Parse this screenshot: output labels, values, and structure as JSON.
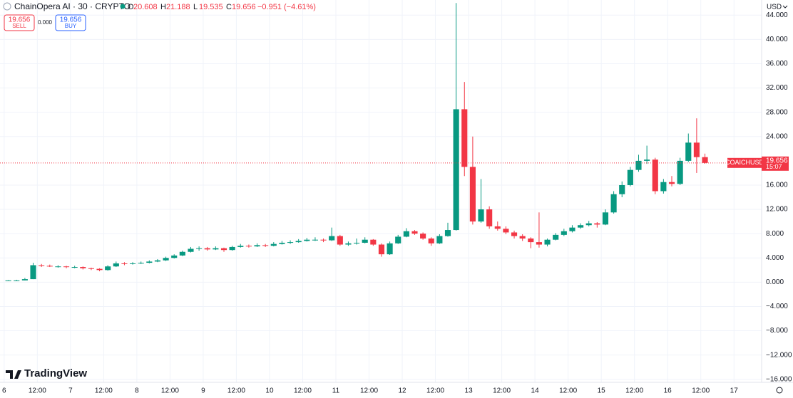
{
  "chart_data": {
    "type": "candlestick",
    "title": "ChainOpera AI · 30 · CRYPTO",
    "header": {
      "o": "O",
      "o_val": "20.608",
      "h": "H",
      "h_val": "21.188",
      "l": "L",
      "l_val": "19.535",
      "c": "C",
      "c_val": "19.656",
      "change": "−0.951 (−4.61%)"
    },
    "trade": {
      "sell_price": "19.656",
      "sell": "SELL",
      "spread": "0.000",
      "buy_price": "19.656",
      "buy": "BUY"
    },
    "currency": "USD",
    "symbol_label": "COAICHUSD",
    "last_price_label": "19.656",
    "countdown": "15:07",
    "brand": "TradingView",
    "up_color": "#089981",
    "down_color": "#f23645",
    "grid": true,
    "xlim": [
      -1.5,
      274
    ],
    "ylim": [
      -16.5,
      46.5
    ],
    "xticks": [
      {
        "value": 0,
        "label": "6"
      },
      {
        "value": 12,
        "label": "12:00"
      },
      {
        "value": 24,
        "label": "7"
      },
      {
        "value": 36,
        "label": "12:00"
      },
      {
        "value": 48,
        "label": "8"
      },
      {
        "value": 60,
        "label": "12:00"
      },
      {
        "value": 72,
        "label": "9"
      },
      {
        "value": 84,
        "label": "12:00"
      },
      {
        "value": 96,
        "label": "10"
      },
      {
        "value": 108,
        "label": "12:00"
      },
      {
        "value": 120,
        "label": "11"
      },
      {
        "value": 132,
        "label": "12:00"
      },
      {
        "value": 144,
        "label": "12"
      },
      {
        "value": 156,
        "label": "12:00"
      },
      {
        "value": 168,
        "label": "13"
      },
      {
        "value": 180,
        "label": "12:00"
      },
      {
        "value": 192,
        "label": "14"
      },
      {
        "value": 204,
        "label": "12:00"
      },
      {
        "value": 216,
        "label": "15"
      },
      {
        "value": 228,
        "label": "12:00"
      },
      {
        "value": 240,
        "label": "16"
      },
      {
        "value": 252,
        "label": "12:00"
      },
      {
        "value": 264,
        "label": "17"
      }
    ],
    "yticks": [
      {
        "value": 44,
        "label": "44.000"
      },
      {
        "value": 40,
        "label": "40.000"
      },
      {
        "value": 36,
        "label": "36.000"
      },
      {
        "value": 32,
        "label": "32.000"
      },
      {
        "value": 28,
        "label": "28.000"
      },
      {
        "value": 24,
        "label": "24.000"
      },
      {
        "value": 16,
        "label": "16.000"
      },
      {
        "value": 12,
        "label": "12.000"
      },
      {
        "value": 8,
        "label": "8.000"
      },
      {
        "value": 4,
        "label": "4.000"
      },
      {
        "value": 0,
        "label": "0.000"
      },
      {
        "value": -4,
        "label": "−4.000"
      },
      {
        "value": -8,
        "label": "−8.000"
      },
      {
        "value": -12,
        "label": "−12.000"
      },
      {
        "value": -16,
        "label": "−16.000"
      }
    ],
    "x": [
      0,
      3,
      6,
      9,
      12,
      15,
      18,
      21,
      24,
      27,
      30,
      33,
      36,
      39,
      42,
      45,
      48,
      51,
      54,
      57,
      60,
      63,
      66,
      69,
      72,
      75,
      78,
      81,
      84,
      87,
      90,
      93,
      96,
      99,
      102,
      105,
      108,
      111,
      114,
      117,
      120,
      123,
      126,
      129,
      132,
      135,
      138,
      141,
      144,
      147,
      150,
      153,
      156,
      159,
      162,
      165,
      168,
      171,
      174,
      177,
      180,
      183,
      186,
      189,
      192,
      195,
      198,
      201,
      204,
      207,
      210,
      213,
      216,
      219,
      222,
      225,
      228,
      231,
      234,
      237,
      240,
      243,
      246,
      249,
      252
    ],
    "ohlc": [
      [
        0.3,
        0.35,
        0.25,
        0.3
      ],
      [
        0.3,
        0.4,
        0.25,
        0.3
      ],
      [
        0.3,
        0.7,
        0.3,
        0.5
      ],
      [
        0.5,
        3.2,
        0.5,
        2.8
      ],
      [
        2.8,
        3.0,
        2.5,
        2.7
      ],
      [
        2.7,
        2.9,
        2.5,
        2.6
      ],
      [
        2.6,
        2.8,
        2.4,
        2.6
      ],
      [
        2.6,
        2.7,
        2.3,
        2.5
      ],
      [
        2.5,
        2.7,
        2.3,
        2.5
      ],
      [
        2.5,
        2.6,
        2.1,
        2.3
      ],
      [
        2.3,
        2.4,
        2.0,
        2.2
      ],
      [
        2.2,
        2.3,
        1.8,
        2.0
      ],
      [
        2.0,
        2.8,
        1.9,
        2.6
      ],
      [
        2.6,
        3.4,
        2.5,
        3.1
      ],
      [
        3.1,
        3.3,
        2.8,
        3.0
      ],
      [
        3.0,
        3.3,
        2.9,
        3.1
      ],
      [
        3.1,
        3.4,
        3.0,
        3.2
      ],
      [
        3.2,
        3.6,
        3.1,
        3.4
      ],
      [
        3.4,
        3.8,
        3.3,
        3.6
      ],
      [
        3.6,
        4.2,
        3.5,
        4.0
      ],
      [
        4.0,
        4.6,
        3.9,
        4.4
      ],
      [
        4.4,
        5.2,
        4.3,
        5.0
      ],
      [
        5.0,
        5.8,
        4.9,
        5.5
      ],
      [
        5.5,
        5.9,
        5.2,
        5.6
      ],
      [
        5.6,
        5.8,
        5.2,
        5.4
      ],
      [
        5.4,
        5.9,
        5.3,
        5.6
      ],
      [
        5.6,
        5.7,
        5.0,
        5.3
      ],
      [
        5.3,
        6.0,
        5.2,
        5.8
      ],
      [
        5.8,
        6.3,
        5.7,
        6.0
      ],
      [
        6.0,
        6.2,
        5.7,
        5.9
      ],
      [
        5.9,
        6.4,
        5.8,
        6.1
      ],
      [
        6.1,
        6.3,
        5.8,
        6.0
      ],
      [
        6.0,
        6.6,
        5.9,
        6.3
      ],
      [
        6.3,
        6.8,
        6.2,
        6.5
      ],
      [
        6.5,
        6.9,
        6.3,
        6.6
      ],
      [
        6.6,
        7.1,
        6.5,
        6.8
      ],
      [
        6.8,
        7.3,
        6.7,
        7.0
      ],
      [
        7.0,
        7.4,
        6.8,
        7.0
      ],
      [
        7.0,
        7.2,
        6.6,
        6.9
      ],
      [
        6.9,
        9.0,
        6.8,
        7.6
      ],
      [
        7.6,
        7.8,
        6.0,
        6.2
      ],
      [
        6.2,
        6.7,
        6.0,
        6.4
      ],
      [
        6.4,
        7.2,
        6.2,
        6.5
      ],
      [
        6.5,
        7.4,
        6.4,
        7.0
      ],
      [
        7.0,
        7.1,
        6.0,
        6.2
      ],
      [
        6.2,
        6.4,
        4.2,
        4.6
      ],
      [
        4.6,
        6.7,
        4.5,
        6.4
      ],
      [
        6.4,
        7.8,
        6.3,
        7.5
      ],
      [
        7.5,
        8.9,
        7.4,
        8.4
      ],
      [
        8.4,
        8.6,
        7.8,
        8.0
      ],
      [
        8.0,
        8.2,
        7.0,
        7.2
      ],
      [
        7.2,
        7.4,
        6.0,
        6.4
      ],
      [
        6.4,
        7.9,
        6.3,
        7.6
      ],
      [
        7.6,
        9.8,
        7.5,
        8.6
      ],
      [
        8.6,
        46.0,
        8.5,
        28.5
      ],
      [
        28.5,
        33.0,
        17.5,
        19.0
      ],
      [
        19.0,
        24.0,
        9.5,
        10.0
      ],
      [
        10.0,
        17.0,
        9.8,
        12.0
      ],
      [
        12.0,
        12.5,
        8.8,
        9.2
      ],
      [
        9.2,
        10.0,
        8.5,
        8.8
      ],
      [
        8.8,
        9.2,
        7.9,
        8.2
      ],
      [
        8.2,
        8.5,
        7.2,
        7.6
      ],
      [
        7.6,
        7.9,
        6.8,
        7.2
      ],
      [
        7.2,
        7.4,
        5.6,
        6.6
      ],
      [
        6.6,
        11.5,
        5.7,
        6.2
      ],
      [
        6.2,
        7.2,
        5.9,
        7.0
      ],
      [
        7.0,
        8.1,
        6.9,
        7.8
      ],
      [
        7.8,
        8.8,
        7.6,
        8.4
      ],
      [
        8.4,
        9.4,
        8.2,
        9.0
      ],
      [
        9.0,
        9.7,
        8.8,
        9.4
      ],
      [
        9.4,
        10.1,
        9.2,
        9.7
      ],
      [
        9.7,
        9.9,
        9.0,
        9.5
      ],
      [
        9.5,
        12.0,
        9.4,
        11.5
      ],
      [
        11.5,
        15.0,
        11.3,
        14.5
      ],
      [
        14.5,
        16.6,
        14.0,
        16.0
      ],
      [
        16.0,
        19.0,
        15.8,
        18.5
      ],
      [
        18.5,
        21.0,
        18.2,
        20.0
      ],
      [
        20.0,
        22.5,
        19.5,
        20.2
      ],
      [
        20.2,
        20.5,
        14.5,
        15.0
      ],
      [
        15.0,
        17.0,
        14.6,
        16.5
      ],
      [
        16.5,
        17.5,
        15.8,
        16.2
      ],
      [
        16.2,
        20.5,
        16.0,
        20.0
      ],
      [
        20.0,
        24.5,
        19.8,
        23.0
      ],
      [
        23.0,
        27.0,
        18.0,
        20.608
      ],
      [
        20.608,
        21.188,
        19.535,
        19.656
      ]
    ]
  }
}
